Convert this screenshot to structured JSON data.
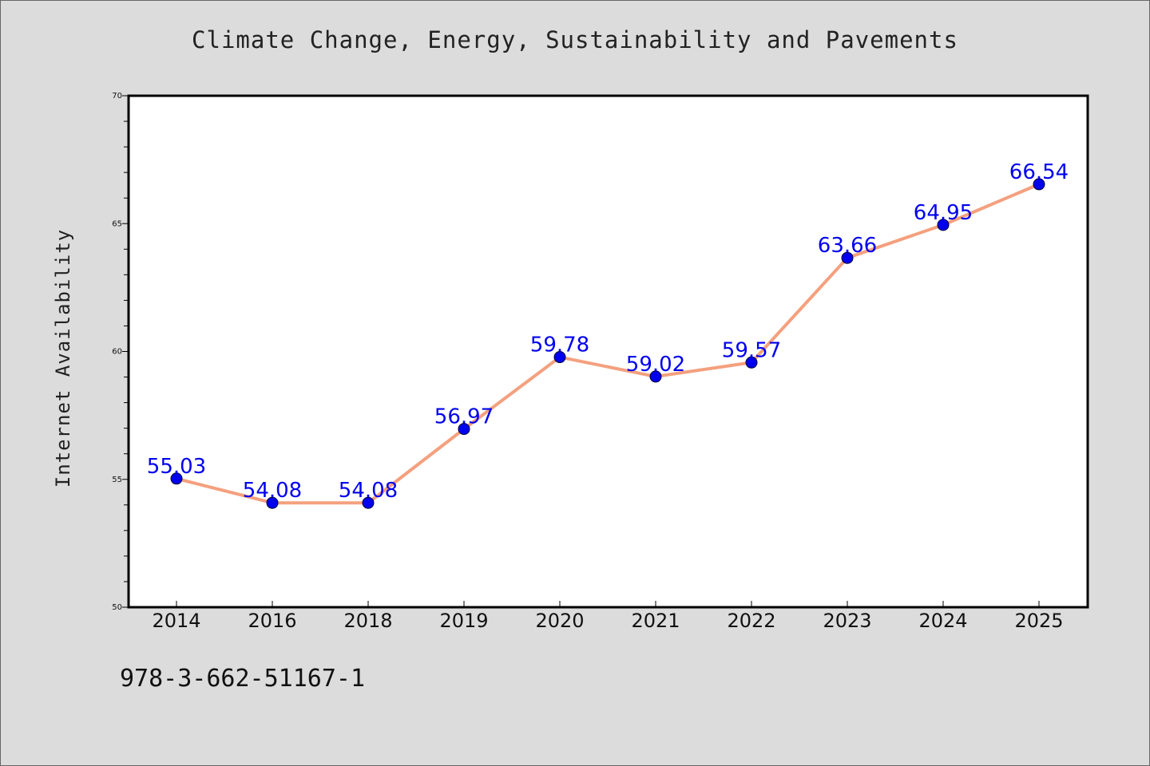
{
  "chart_data": {
    "type": "line",
    "title": "Climate Change, Energy, Sustainability and Pavements",
    "xlabel": "",
    "ylabel": "Internet Availability",
    "categories": [
      "2014",
      "2016",
      "2018",
      "2019",
      "2020",
      "2021",
      "2022",
      "2023",
      "2024",
      "2025"
    ],
    "values": [
      55.03,
      54.08,
      54.08,
      56.97,
      59.78,
      59.02,
      59.57,
      63.66,
      64.95,
      66.54
    ],
    "data_labels": [
      "55.03",
      "54.08",
      "54.08",
      "56.97",
      "59.78",
      "59.02",
      "59.57",
      "63.66",
      "64.95",
      "66.54"
    ],
    "ylim": [
      50,
      70
    ],
    "yticks": [
      "50",
      "55",
      "60",
      "65",
      "70"
    ],
    "y_minor_step": 1,
    "grid": false,
    "legend": "none",
    "colors": {
      "line": "#f4a07e",
      "marker": "#0000ee",
      "data_label": "#0000ee",
      "plot_background": "#ffffff",
      "page_background": "#dcdcdc"
    }
  },
  "footer": {
    "isbn": "978-3-662-51167-1"
  }
}
